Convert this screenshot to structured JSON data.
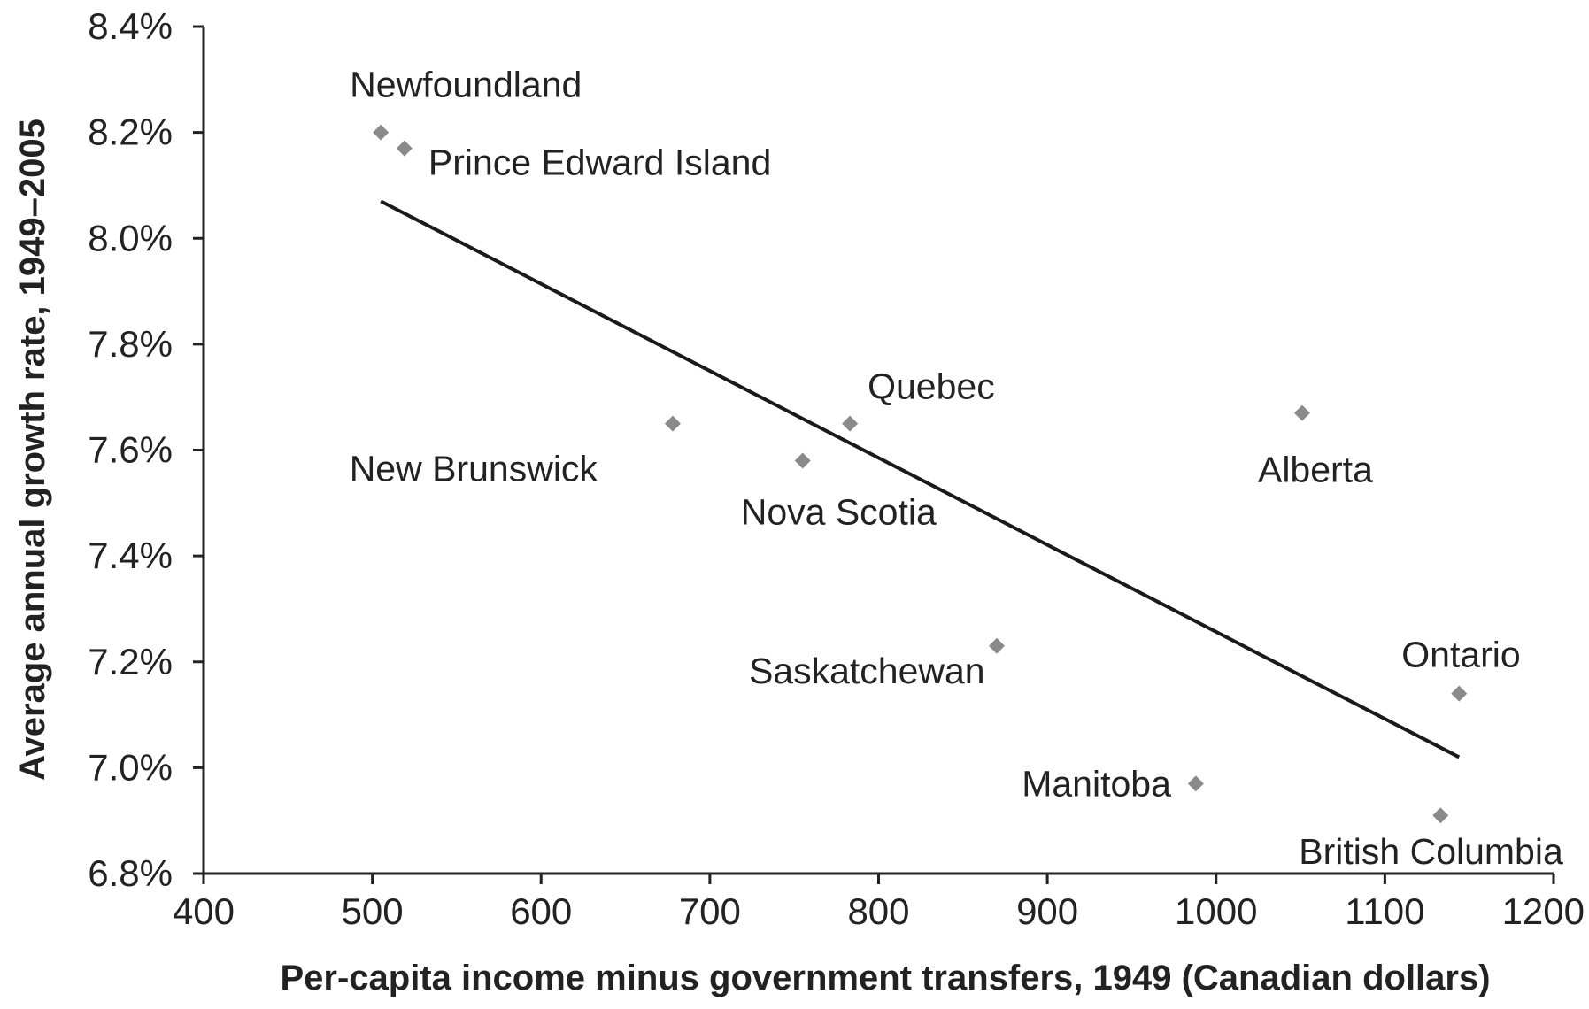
{
  "chart_data": {
    "type": "scatter",
    "title": "",
    "xlabel": "Per-capita income minus government transfers, 1949 (Canadian dollars)",
    "ylabel": "Average annual growth rate, 1949–2005",
    "xlim": [
      400,
      1200
    ],
    "ylim": [
      6.8,
      8.4
    ],
    "x_ticks": [
      "400",
      "500",
      "600",
      "700",
      "800",
      "900",
      "1000",
      "1100",
      "1200"
    ],
    "y_ticks": [
      "6.8%",
      "7.0%",
      "7.2%",
      "7.4%",
      "7.6%",
      "7.8%",
      "8.0%",
      "8.2%",
      "8.4%"
    ],
    "grid": false,
    "legend": "none",
    "marker_color": "#8a8a8a",
    "trendline_color": "#1a1a1a",
    "points": [
      {
        "label": "Newfoundland",
        "x": 505,
        "y": 8.2
      },
      {
        "label": "Prince Edward Island",
        "x": 519,
        "y": 8.17
      },
      {
        "label": "New Brunswick",
        "x": 678,
        "y": 7.65
      },
      {
        "label": "Nova Scotia",
        "x": 755,
        "y": 7.58
      },
      {
        "label": "Quebec",
        "x": 783,
        "y": 7.65
      },
      {
        "label": "Saskatchewan",
        "x": 870,
        "y": 7.23
      },
      {
        "label": "Manitoba",
        "x": 988,
        "y": 6.97
      },
      {
        "label": "Alberta",
        "x": 1051,
        "y": 7.67
      },
      {
        "label": "British Columbia",
        "x": 1133,
        "y": 6.91
      },
      {
        "label": "Ontario",
        "x": 1144,
        "y": 7.14
      }
    ],
    "trendline": {
      "x": [
        505,
        1144
      ],
      "y": [
        8.07,
        7.02
      ]
    }
  }
}
